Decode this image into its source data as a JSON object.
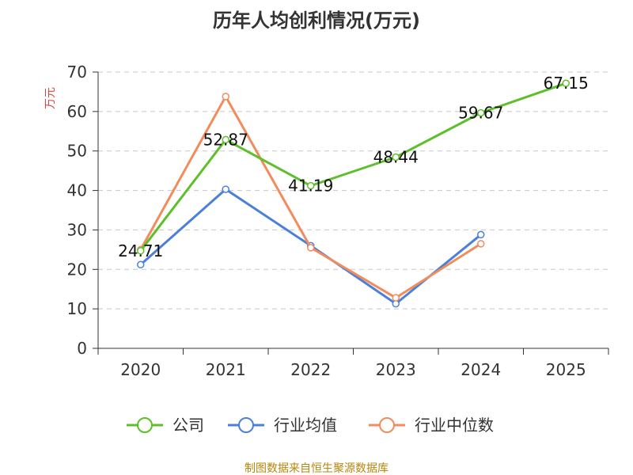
{
  "chart_data": {
    "type": "line",
    "title": "历年人均创利情况(万元)",
    "xlabel": "",
    "ylabel": "万元",
    "categories": [
      "2020",
      "2021",
      "2022",
      "2023",
      "2024",
      "2025"
    ],
    "ylim": [
      0,
      70
    ],
    "yticks": [
      0,
      10,
      20,
      30,
      40,
      50,
      60,
      70
    ],
    "grid": true,
    "legend_position": "bottom",
    "series": [
      {
        "name": "公司",
        "color": "#5dbf2a",
        "values": [
          24.71,
          52.87,
          41.19,
          48.44,
          59.67,
          67.15
        ],
        "labels": [
          "24.71",
          "52.87",
          "41.19",
          "48.44",
          "59.67",
          "67.15"
        ]
      },
      {
        "name": "行业均值",
        "color": "#4a7fdb",
        "values": [
          21.2,
          40.3,
          26.0,
          11.3,
          28.8,
          null
        ]
      },
      {
        "name": "行业中位数",
        "color": "#f28c5b",
        "values": [
          25.0,
          63.8,
          25.5,
          12.8,
          26.5,
          null
        ]
      }
    ],
    "source": "制图数据来自恒生聚源数据库"
  }
}
